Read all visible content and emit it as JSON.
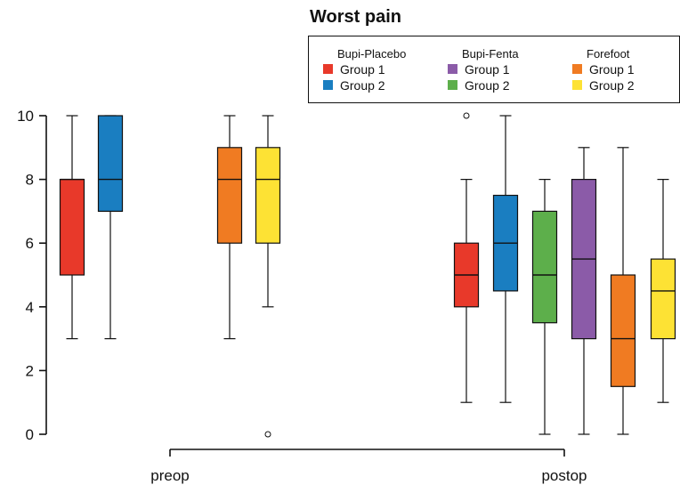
{
  "chart_data": {
    "type": "box",
    "title": "Worst pain",
    "xlabel": "",
    "ylabel": "",
    "ylim": [
      0,
      10
    ],
    "yticks": [
      0,
      2,
      4,
      6,
      8,
      10
    ],
    "x_groups": [
      "preop",
      "postop"
    ],
    "legend": {
      "placement": "top-right",
      "groups": [
        {
          "title": "Bupi-Placebo",
          "items": [
            {
              "label": "Group 1",
              "color": "#e8392a"
            },
            {
              "label": "Group 2",
              "color": "#1a7ec1"
            }
          ]
        },
        {
          "title": "Bupi-Fenta",
          "items": [
            {
              "label": "Group 1",
              "color": "#8b5ba8"
            },
            {
              "label": "Group 2",
              "color": "#5daf4b"
            }
          ]
        },
        {
          "title": "Forefoot",
          "items": [
            {
              "label": "Group 1",
              "color": "#f07b22"
            },
            {
              "label": "Group 2",
              "color": "#fde234"
            }
          ]
        }
      ]
    },
    "boxes": [
      {
        "group": "preop",
        "series": "Bupi-Placebo Group 1",
        "color": "#e8392a",
        "min": 3,
        "q1": 5,
        "median": 8,
        "q3": 8,
        "max": 10,
        "outliers": []
      },
      {
        "group": "preop",
        "series": "Bupi-Placebo Group 2",
        "color": "#1a7ec1",
        "min": 3,
        "q1": 7,
        "median": 8,
        "q3": 10,
        "max": 10,
        "outliers": []
      },
      {
        "group": "preop",
        "series": "Forefoot Group 1",
        "color": "#f07b22",
        "min": 3,
        "q1": 6,
        "median": 8,
        "q3": 9,
        "max": 10,
        "outliers": []
      },
      {
        "group": "preop",
        "series": "Forefoot Group 2",
        "color": "#fde234",
        "min": 4,
        "q1": 6,
        "median": 8,
        "q3": 9,
        "max": 10,
        "outliers": [
          0
        ]
      },
      {
        "group": "postop",
        "series": "Bupi-Placebo Group 1",
        "color": "#e8392a",
        "min": 1,
        "q1": 4,
        "median": 5,
        "q3": 6,
        "max": 8,
        "outliers": [
          10
        ]
      },
      {
        "group": "postop",
        "series": "Bupi-Placebo Group 2",
        "color": "#1a7ec1",
        "min": 1,
        "q1": 4.5,
        "median": 6,
        "q3": 7.5,
        "max": 10,
        "outliers": []
      },
      {
        "group": "postop",
        "series": "Bupi-Fenta Group 2",
        "color": "#5daf4b",
        "min": 0,
        "q1": 3.5,
        "median": 5,
        "q3": 7,
        "max": 8,
        "outliers": []
      },
      {
        "group": "postop",
        "series": "Bupi-Fenta Group 1",
        "color": "#8b5ba8",
        "min": 0,
        "q1": 3,
        "median": 5.5,
        "q3": 8,
        "max": 9,
        "outliers": []
      },
      {
        "group": "postop",
        "series": "Forefoot Group 1",
        "color": "#f07b22",
        "min": 0,
        "q1": 1.5,
        "median": 3,
        "q3": 5,
        "max": 9,
        "outliers": []
      },
      {
        "group": "postop",
        "series": "Forefoot Group 2",
        "color": "#fde234",
        "min": 1,
        "q1": 3,
        "median": 4.5,
        "q3": 5.5,
        "max": 8,
        "outliers": []
      }
    ]
  }
}
